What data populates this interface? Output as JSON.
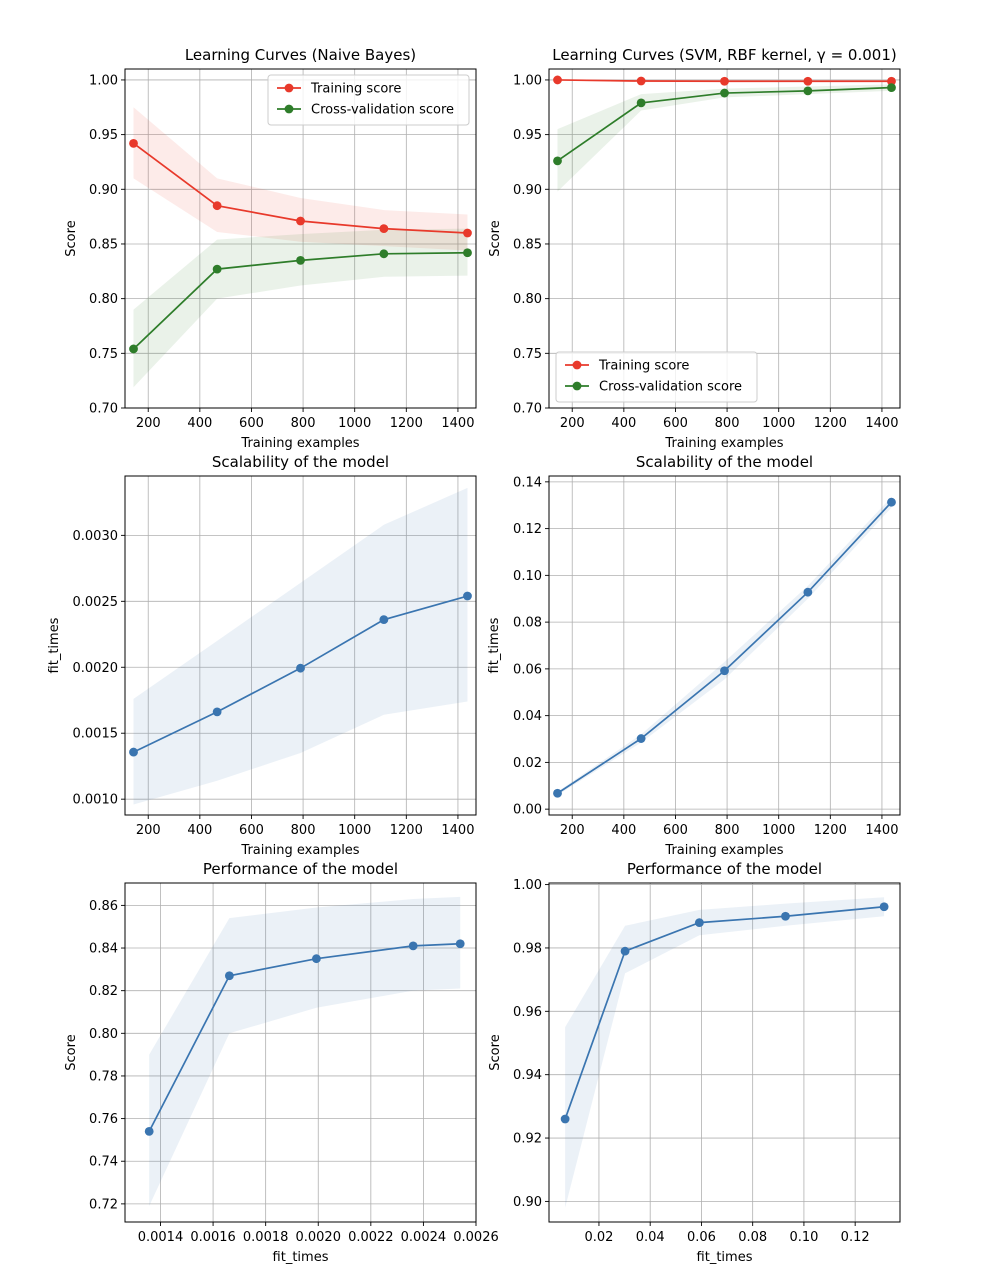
{
  "figure": {
    "background": "#ffffff"
  },
  "chart_data": [
    {
      "id": "p1",
      "type": "line",
      "title": "Learning Curves (Naive Bayes)",
      "xlabel": "Training examples",
      "ylabel": "Score",
      "xlim": [
        110,
        1470
      ],
      "ylim": [
        0.7,
        1.01
      ],
      "xticks": [
        200,
        400,
        600,
        800,
        1000,
        1200,
        1400
      ],
      "xtick_labels": [
        "200",
        "400",
        "600",
        "800",
        "1000",
        "1200",
        "1400"
      ],
      "yticks": [
        0.7,
        0.75,
        0.8,
        0.85,
        0.9,
        0.95,
        1.0
      ],
      "ytick_labels": [
        "0.70",
        "0.75",
        "0.80",
        "0.85",
        "0.90",
        "0.95",
        "1.00"
      ],
      "grid": true,
      "legend": "top-right",
      "series": [
        {
          "name": "Training score",
          "color": "#e8392b",
          "x": [
            143,
            467,
            790,
            1113,
            1437
          ],
          "y": [
            0.942,
            0.885,
            0.871,
            0.864,
            0.86
          ],
          "lower": [
            0.91,
            0.861,
            0.852,
            0.848,
            0.844
          ],
          "upper": [
            0.975,
            0.91,
            0.892,
            0.881,
            0.877
          ]
        },
        {
          "name": "Cross-validation score",
          "color": "#2e7d2a",
          "x": [
            143,
            467,
            790,
            1113,
            1437
          ],
          "y": [
            0.754,
            0.827,
            0.835,
            0.841,
            0.842
          ],
          "lower": [
            0.719,
            0.8,
            0.812,
            0.82,
            0.821
          ],
          "upper": [
            0.79,
            0.854,
            0.859,
            0.863,
            0.864
          ]
        }
      ]
    },
    {
      "id": "p2",
      "type": "line",
      "title": "Learning Curves (SVM, RBF kernel, γ = 0.001)",
      "xlabel": "Training examples",
      "ylabel": "Score",
      "xlim": [
        110,
        1470
      ],
      "ylim": [
        0.7,
        1.01
      ],
      "xticks": [
        200,
        400,
        600,
        800,
        1000,
        1200,
        1400
      ],
      "xtick_labels": [
        "200",
        "400",
        "600",
        "800",
        "1000",
        "1200",
        "1400"
      ],
      "yticks": [
        0.7,
        0.75,
        0.8,
        0.85,
        0.9,
        0.95,
        1.0
      ],
      "ytick_labels": [
        "0.70",
        "0.75",
        "0.80",
        "0.85",
        "0.90",
        "0.95",
        "1.00"
      ],
      "grid": true,
      "legend": "bottom-left",
      "series": [
        {
          "name": "Training score",
          "color": "#e8392b",
          "x": [
            143,
            467,
            790,
            1113,
            1437
          ],
          "y": [
            1.0,
            0.999,
            0.9988,
            0.9988,
            0.9988
          ],
          "lower": [
            0.9995,
            0.998,
            0.998,
            0.998,
            0.998
          ],
          "upper": [
            1.0,
            1.0,
            0.9995,
            0.9995,
            0.9995
          ]
        },
        {
          "name": "Cross-validation score",
          "color": "#2e7d2a",
          "x": [
            143,
            467,
            790,
            1113,
            1437
          ],
          "y": [
            0.926,
            0.979,
            0.988,
            0.99,
            0.993
          ],
          "lower": [
            0.898,
            0.972,
            0.984,
            0.987,
            0.99
          ],
          "upper": [
            0.955,
            0.987,
            0.992,
            0.994,
            0.996
          ]
        }
      ]
    },
    {
      "id": "p3",
      "type": "line",
      "title": "Scalability of the model",
      "xlabel": "Training examples",
      "ylabel": "fit_times",
      "xlim": [
        110,
        1470
      ],
      "ylim": [
        0.00088,
        0.00345
      ],
      "xticks": [
        200,
        400,
        600,
        800,
        1000,
        1200,
        1400
      ],
      "xtick_labels": [
        "200",
        "400",
        "600",
        "800",
        "1000",
        "1200",
        "1400"
      ],
      "yticks": [
        0.001,
        0.0015,
        0.002,
        0.0025,
        0.003
      ],
      "ytick_labels": [
        "0.0010",
        "0.0015",
        "0.0020",
        "0.0025",
        "0.0030"
      ],
      "grid": true,
      "legend": "none",
      "series": [
        {
          "color": "#3a75b0",
          "x": [
            143,
            467,
            790,
            1113,
            1437
          ],
          "y": [
            0.001357,
            0.001662,
            0.001993,
            0.002361,
            0.00254
          ],
          "lower": [
            0.00096,
            0.00114,
            0.00135,
            0.00164,
            0.00174
          ],
          "upper": [
            0.00176,
            0.0022,
            0.00264,
            0.00308,
            0.00336
          ]
        }
      ]
    },
    {
      "id": "p4",
      "type": "line",
      "title": "Scalability of the model",
      "xlabel": "Training examples",
      "ylabel": "fit_times",
      "xlim": [
        110,
        1470
      ],
      "ylim": [
        -0.0025,
        0.1425
      ],
      "xticks": [
        200,
        400,
        600,
        800,
        1000,
        1200,
        1400
      ],
      "xtick_labels": [
        "200",
        "400",
        "600",
        "800",
        "1000",
        "1200",
        "1400"
      ],
      "yticks": [
        0.0,
        0.02,
        0.04,
        0.06,
        0.08,
        0.1,
        0.12,
        0.14
      ],
      "ytick_labels": [
        "0.00",
        "0.02",
        "0.04",
        "0.06",
        "0.08",
        "0.10",
        "0.12",
        "0.14"
      ],
      "grid": true,
      "legend": "none",
      "series": [
        {
          "color": "#3a75b0",
          "x": [
            143,
            467,
            790,
            1113,
            1437
          ],
          "y": [
            0.0068,
            0.0302,
            0.0592,
            0.0928,
            0.1313
          ],
          "lower": [
            0.006,
            0.0285,
            0.0555,
            0.09,
            0.129
          ],
          "upper": [
            0.0075,
            0.032,
            0.063,
            0.0955,
            0.1335
          ]
        }
      ]
    },
    {
      "id": "p5",
      "type": "line",
      "title": "Performance of the model",
      "xlabel": "fit_times",
      "ylabel": "Score",
      "xlim": [
        0.001265,
        0.0026
      ],
      "ylim": [
        0.7115,
        0.8705
      ],
      "xticks": [
        0.0014,
        0.0016,
        0.0018,
        0.002,
        0.0022,
        0.0024,
        0.0026
      ],
      "xtick_labels": [
        "0.0014",
        "0.0016",
        "0.0018",
        "0.0020",
        "0.0022",
        "0.0024",
        "0.0026"
      ],
      "yticks": [
        0.72,
        0.74,
        0.76,
        0.78,
        0.8,
        0.82,
        0.84,
        0.86
      ],
      "ytick_labels": [
        "0.72",
        "0.74",
        "0.76",
        "0.78",
        "0.80",
        "0.82",
        "0.84",
        "0.86"
      ],
      "grid": true,
      "legend": "none",
      "series": [
        {
          "color": "#3a75b0",
          "x": [
            0.001357,
            0.001662,
            0.001993,
            0.002361,
            0.00254
          ],
          "y": [
            0.754,
            0.827,
            0.835,
            0.841,
            0.842
          ],
          "lower": [
            0.719,
            0.8,
            0.812,
            0.82,
            0.821
          ],
          "upper": [
            0.79,
            0.854,
            0.859,
            0.863,
            0.864
          ]
        }
      ]
    },
    {
      "id": "p6",
      "type": "line",
      "title": "Performance of the model",
      "xlabel": "fit_times",
      "ylabel": "Score",
      "xlim": [
        0.000505,
        0.1375
      ],
      "ylim": [
        0.8935,
        1.0005
      ],
      "xticks": [
        0.02,
        0.04,
        0.06,
        0.08,
        0.1,
        0.12
      ],
      "xtick_labels": [
        "0.02",
        "0.04",
        "0.06",
        "0.08",
        "0.10",
        "0.12"
      ],
      "yticks": [
        0.9,
        0.92,
        0.94,
        0.96,
        0.98,
        1.0
      ],
      "ytick_labels": [
        "0.90",
        "0.92",
        "0.94",
        "0.96",
        "0.98",
        "1.00"
      ],
      "grid": true,
      "legend": "none",
      "series": [
        {
          "color": "#3a75b0",
          "x": [
            0.0068,
            0.0302,
            0.0592,
            0.0928,
            0.1313
          ],
          "y": [
            0.926,
            0.979,
            0.988,
            0.99,
            0.993
          ],
          "lower": [
            0.898,
            0.972,
            0.984,
            0.987,
            0.99
          ],
          "upper": [
            0.955,
            0.987,
            0.992,
            0.994,
            0.996
          ]
        }
      ]
    }
  ]
}
